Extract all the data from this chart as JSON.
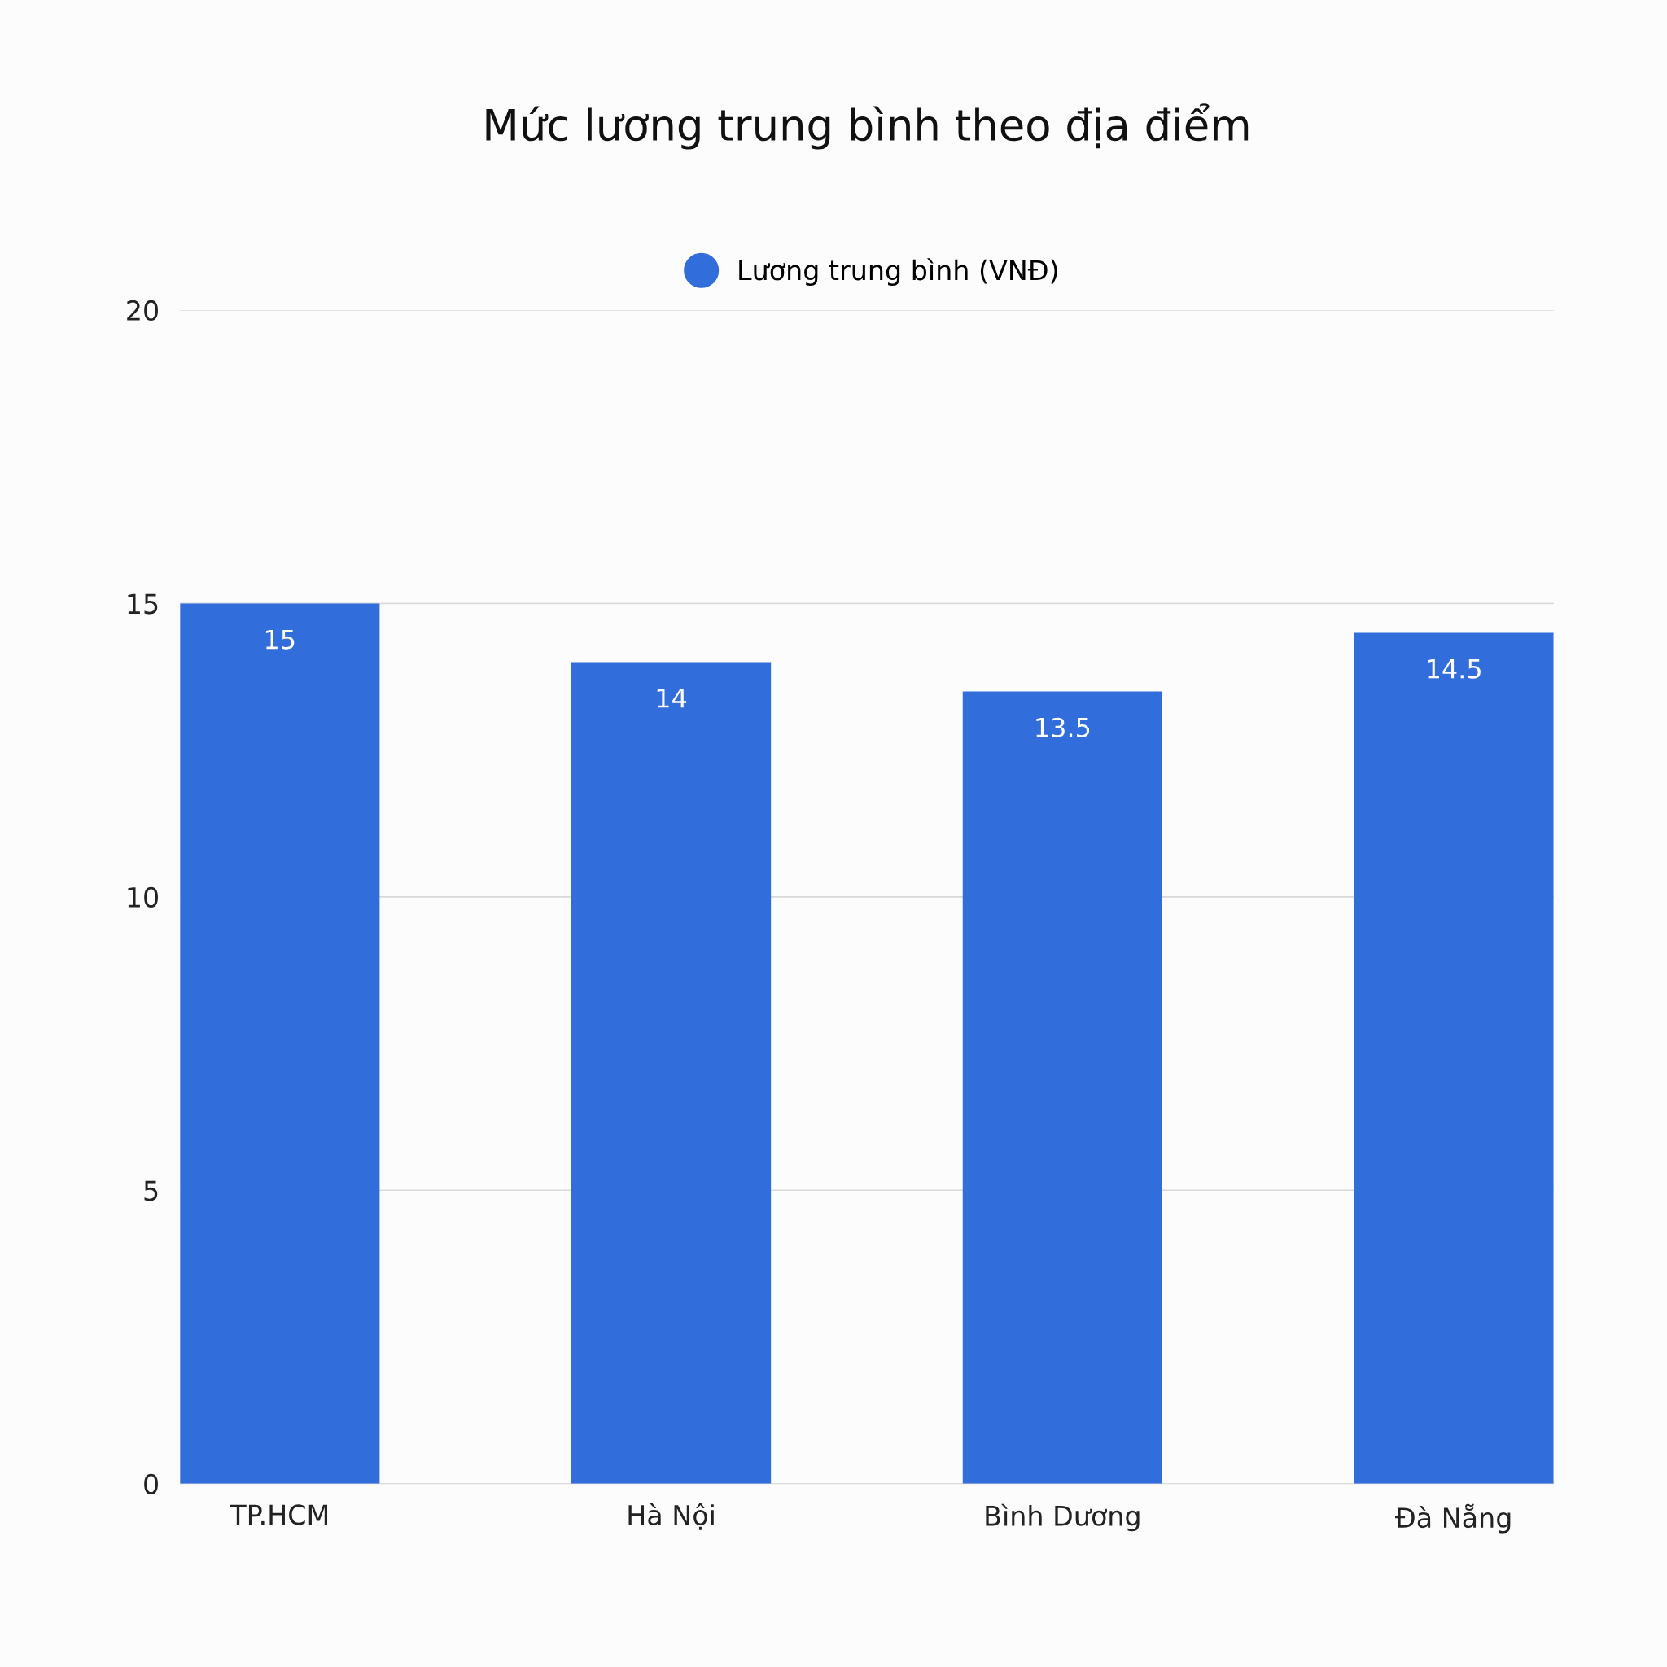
{
  "chart_data": {
    "type": "bar",
    "title": "Mức lương trung bình theo địa điểm",
    "categories": [
      "TP.HCM",
      "Hà Nội",
      "Bình Dương",
      "Đà Nẵng"
    ],
    "series": [
      {
        "name": "Lương trung bình (VNĐ)",
        "color": "#316ddb",
        "values": [
          15,
          14,
          13.5,
          14.5
        ]
      }
    ],
    "ylim": [
      0,
      20
    ],
    "yticks": [
      0,
      5,
      10,
      15,
      20
    ],
    "grid": "y",
    "legend": "top",
    "data_labels": true
  }
}
